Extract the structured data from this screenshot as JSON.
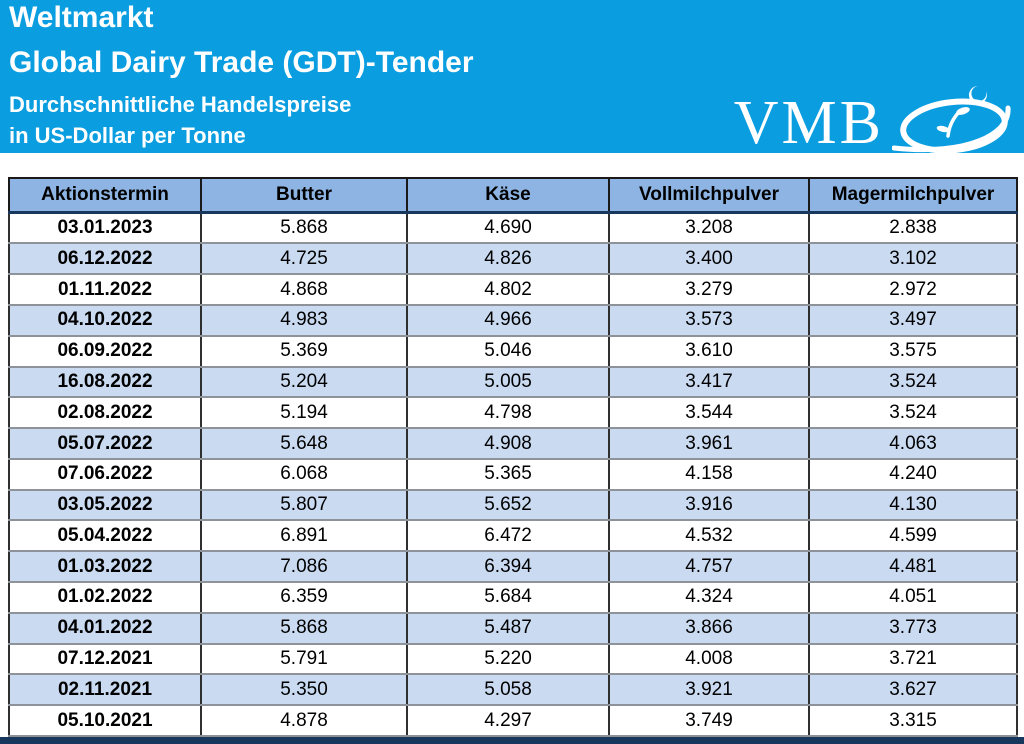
{
  "banner": {
    "title_line1": "Weltmarkt",
    "title_line2": "Global Dairy Trade (GDT)-Tender",
    "subtitle_line1": "Durchschnittliche Handelspreise",
    "subtitle_line2": "in US-Dollar per Tonne",
    "logo_text": "VMB"
  },
  "colors": {
    "banner_blue": "#0a9de0",
    "header_fill": "#8db4e2",
    "alt_row_fill": "#c9daf1",
    "bottom_bar": "#17375d"
  },
  "table": {
    "columns": [
      "Aktionstermin",
      "Butter",
      "Käse",
      "Vollmilchpulver",
      "Magermilchpulver"
    ],
    "rows": [
      [
        "03.01.2023",
        "5.868",
        "4.690",
        "3.208",
        "2.838"
      ],
      [
        "06.12.2022",
        "4.725",
        "4.826",
        "3.400",
        "3.102"
      ],
      [
        "01.11.2022",
        "4.868",
        "4.802",
        "3.279",
        "2.972"
      ],
      [
        "04.10.2022",
        "4.983",
        "4.966",
        "3.573",
        "3.497"
      ],
      [
        "06.09.2022",
        "5.369",
        "5.046",
        "3.610",
        "3.575"
      ],
      [
        "16.08.2022",
        "5.204",
        "5.005",
        "3.417",
        "3.524"
      ],
      [
        "02.08.2022",
        "5.194",
        "4.798",
        "3.544",
        "3.524"
      ],
      [
        "05.07.2022",
        "5.648",
        "4.908",
        "3.961",
        "4.063"
      ],
      [
        "07.06.2022",
        "6.068",
        "5.365",
        "4.158",
        "4.240"
      ],
      [
        "03.05.2022",
        "5.807",
        "5.652",
        "3.916",
        "4.130"
      ],
      [
        "05.04.2022",
        "6.891",
        "6.472",
        "4.532",
        "4.599"
      ],
      [
        "01.03.2022",
        "7.086",
        "6.394",
        "4.757",
        "4.481"
      ],
      [
        "01.02.2022",
        "6.359",
        "5.684",
        "4.324",
        "4.051"
      ],
      [
        "04.01.2022",
        "5.868",
        "5.487",
        "3.866",
        "3.773"
      ],
      [
        "07.12.2021",
        "5.791",
        "5.220",
        "4.008",
        "3.721"
      ],
      [
        "02.11.2021",
        "5.350",
        "5.058",
        "3.921",
        "3.627"
      ],
      [
        "05.10.2021",
        "4.878",
        "4.297",
        "3.749",
        "3.315"
      ]
    ]
  }
}
